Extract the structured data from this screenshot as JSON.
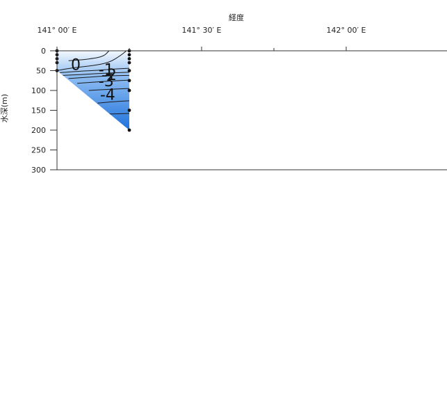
{
  "chart_data": {
    "type": "contour_section",
    "title": "",
    "xlabel": "経度",
    "ylabel": "水深(m)",
    "x_axis_position": "top",
    "x_ticks": [
      {
        "lon": 141.0,
        "label": "141° 00′ E"
      },
      {
        "lon": 141.5,
        "label": "141° 30′ E"
      },
      {
        "lon": 142.0,
        "label": "142° 00′ E"
      }
    ],
    "x_minor_ticks": [
      141.25,
      141.75
    ],
    "xlim": [
      141.0,
      142.3
    ],
    "y_ticks": [
      0,
      50,
      100,
      150,
      200,
      250,
      300
    ],
    "ylim": [
      0,
      300
    ],
    "y_inverted": true,
    "stations": [
      {
        "lon": 141.0,
        "depths": [
          0,
          10,
          20,
          30,
          50
        ]
      },
      {
        "lon": 141.25,
        "depths": [
          0,
          10,
          20,
          30,
          50,
          75,
          100,
          150,
          200
        ]
      }
    ],
    "section_polygon": [
      {
        "lon": 141.0,
        "depth": 0
      },
      {
        "lon": 141.25,
        "depth": 0
      },
      {
        "lon": 141.25,
        "depth": 200
      },
      {
        "lon": 141.0,
        "depth": 50
      }
    ],
    "contours": [
      {
        "level": 0,
        "label": "0",
        "points": [
          [
            141.0,
            50
          ],
          [
            141.05,
            43
          ],
          [
            141.12,
            38
          ],
          [
            141.18,
            30
          ],
          [
            141.22,
            12
          ],
          [
            141.24,
            0
          ]
        ]
      },
      {
        "level": 0.5,
        "label": "",
        "points": [
          [
            141.04,
            25
          ],
          [
            141.1,
            22
          ],
          [
            141.16,
            15
          ],
          [
            141.18,
            0
          ]
        ]
      },
      {
        "level": -1,
        "label": "-1",
        "points": [
          [
            141.01,
            55
          ],
          [
            141.07,
            52
          ],
          [
            141.14,
            49
          ],
          [
            141.2,
            46
          ],
          [
            141.25,
            44
          ]
        ]
      },
      {
        "level": -2,
        "label": "-2",
        "points": [
          [
            141.02,
            62
          ],
          [
            141.08,
            60
          ],
          [
            141.15,
            57
          ],
          [
            141.25,
            54
          ]
        ]
      },
      {
        "level": -3,
        "label": "-3",
        "points": [
          [
            141.04,
            70
          ],
          [
            141.1,
            67
          ],
          [
            141.18,
            63
          ],
          [
            141.25,
            62
          ]
        ]
      },
      {
        "level": -4,
        "label": "-4",
        "points": [
          [
            141.07,
            82
          ],
          [
            141.13,
            79
          ],
          [
            141.19,
            76
          ],
          [
            141.25,
            74
          ]
        ]
      },
      {
        "level": -4.5,
        "label": "",
        "points": [
          [
            141.11,
            100
          ],
          [
            141.18,
            97
          ],
          [
            141.25,
            95
          ]
        ]
      },
      {
        "level": -5,
        "label": "",
        "points": [
          [
            141.14,
            132
          ],
          [
            141.2,
            128
          ],
          [
            141.25,
            126
          ]
        ]
      },
      {
        "level": -5.3,
        "label": "",
        "points": [
          [
            141.16,
            160
          ],
          [
            141.2,
            159
          ],
          [
            141.25,
            158
          ]
        ]
      }
    ],
    "contour_labels": [
      {
        "text": "0",
        "lon": 141.065,
        "depth": 38
      },
      {
        "text": "-1",
        "lon": 141.17,
        "depth": 50
      },
      {
        "text": "-2",
        "lon": 141.18,
        "depth": 63
      },
      {
        "text": "-3",
        "lon": 141.17,
        "depth": 79
      },
      {
        "text": "-4",
        "lon": 141.175,
        "depth": 113
      }
    ],
    "colors": {
      "fill_light": "#f3f8fe",
      "fill_mid": "#8fbdf2",
      "fill_dark": "#1e72dc",
      "contour": "#1a1a1a",
      "station_dot": "#111111",
      "axis": "#333333"
    }
  }
}
